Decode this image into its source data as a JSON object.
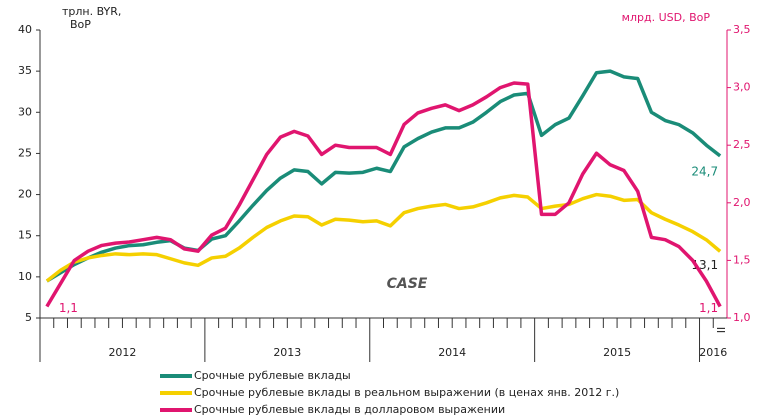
{
  "chart_data": {
    "type": "line",
    "left_axis_label": "трлн. BYR,\nВоР",
    "right_axis_label": "млрд. USD, ВоР",
    "logo": "CASE",
    "categories": [
      "2012",
      null,
      null,
      null,
      null,
      null,
      null,
      null,
      null,
      null,
      null,
      null,
      "2013",
      null,
      null,
      null,
      null,
      null,
      null,
      null,
      null,
      null,
      null,
      null,
      "2014",
      null,
      null,
      null,
      null,
      null,
      null,
      null,
      null,
      null,
      null,
      null,
      "2015",
      null,
      null,
      null,
      null,
      null,
      null,
      null,
      null,
      null,
      null,
      null,
      "2016",
      "II"
    ],
    "ylim": [
      5,
      40
    ],
    "yticks": [
      5,
      10,
      15,
      20,
      25,
      30,
      35,
      40
    ],
    "y2lim": [
      1.0,
      3.5
    ],
    "y2ticks": [
      {
        "value": 1.0,
        "label": "1,0"
      },
      {
        "value": 1.5,
        "label": "1,5"
      },
      {
        "value": 2.0,
        "label": "2,0"
      },
      {
        "value": 2.5,
        "label": "2,5"
      },
      {
        "value": 3.0,
        "label": "3,0"
      },
      {
        "value": 3.5,
        "label": "3,5"
      }
    ],
    "series": [
      {
        "name": "Срочные рублевые вклады",
        "color": "#1a8c78",
        "values": [
          9.5,
          10.5,
          11.5,
          12.3,
          13,
          13.5,
          13.8,
          13.9,
          14.2,
          14.4,
          13.5,
          13.2,
          14.6,
          15,
          16.8,
          18.7,
          20.5,
          22,
          23,
          22.8,
          21.3,
          22.7,
          22.6,
          22.7,
          23.2,
          22.8,
          25.8,
          26.8,
          27.6,
          28.1,
          28.1,
          28.8,
          30,
          31.3,
          32.1,
          32.3,
          27.2,
          28.5,
          29.3,
          32,
          34.8,
          35,
          34.3,
          34.1,
          30,
          29,
          28.5,
          27.5,
          26,
          24.7
        ],
        "value_labels": [
          null,
          null,
          null,
          null,
          null,
          null,
          null,
          null,
          null,
          null,
          null,
          null,
          null,
          null,
          null,
          null,
          null,
          null,
          null,
          null,
          null,
          null,
          null,
          null,
          null,
          null,
          null,
          null,
          null,
          null,
          null,
          null,
          null,
          null,
          null,
          null,
          null,
          null,
          null,
          null,
          null,
          null,
          null,
          null,
          null,
          null,
          null,
          null,
          null,
          "24,7"
        ]
      },
      {
        "name": "Срочные рублевые вклады в реальном выражении (в ценах янв. 2012 г.)",
        "color": "#f5d000",
        "values": [
          9.5,
          10.8,
          11.8,
          12.3,
          12.6,
          12.8,
          12.7,
          12.8,
          12.7,
          12.2,
          11.7,
          11.4,
          12.3,
          12.5,
          13.5,
          14.8,
          16,
          16.8,
          17.4,
          17.3,
          16.3,
          17,
          16.9,
          16.7,
          16.8,
          16.2,
          17.8,
          18.3,
          18.6,
          18.8,
          18.3,
          18.5,
          19,
          19.6,
          19.9,
          19.7,
          18.3,
          18.6,
          18.8,
          19.5,
          20,
          19.8,
          19.3,
          19.4,
          17.8,
          17,
          16.3,
          15.5,
          14.5,
          13.1
        ],
        "value_labels": [
          null,
          null,
          null,
          null,
          null,
          null,
          null,
          null,
          null,
          null,
          null,
          null,
          null,
          null,
          null,
          null,
          null,
          null,
          null,
          null,
          null,
          null,
          null,
          null,
          null,
          null,
          null,
          null,
          null,
          null,
          null,
          null,
          null,
          null,
          null,
          null,
          null,
          null,
          null,
          null,
          null,
          null,
          null,
          null,
          null,
          null,
          null,
          null,
          null,
          "13,1"
        ]
      },
      {
        "name": "Срочные рублевые вклады в долларовом выражении",
        "color": "#e0156f",
        "axis": "y2",
        "values": [
          1.1,
          1.3,
          1.5,
          1.58,
          1.63,
          1.65,
          1.66,
          1.68,
          1.7,
          1.68,
          1.6,
          1.58,
          1.72,
          1.78,
          1.98,
          2.2,
          2.42,
          2.57,
          2.62,
          2.58,
          2.42,
          2.5,
          2.48,
          2.48,
          2.48,
          2.42,
          2.68,
          2.78,
          2.82,
          2.85,
          2.8,
          2.85,
          2.92,
          3.0,
          3.04,
          3.03,
          1.9,
          1.9,
          2.0,
          2.25,
          2.43,
          2.33,
          2.28,
          2.1,
          1.7,
          1.68,
          1.62,
          1.5,
          1.32,
          1.1
        ],
        "value_labels": [
          "1,1",
          null,
          null,
          null,
          null,
          null,
          null,
          null,
          null,
          null,
          null,
          null,
          null,
          null,
          null,
          null,
          null,
          null,
          null,
          null,
          null,
          null,
          null,
          null,
          null,
          null,
          null,
          null,
          null,
          null,
          null,
          null,
          null,
          null,
          null,
          null,
          null,
          null,
          null,
          null,
          null,
          null,
          null,
          null,
          null,
          null,
          null,
          null,
          null,
          "1,1"
        ]
      }
    ]
  }
}
